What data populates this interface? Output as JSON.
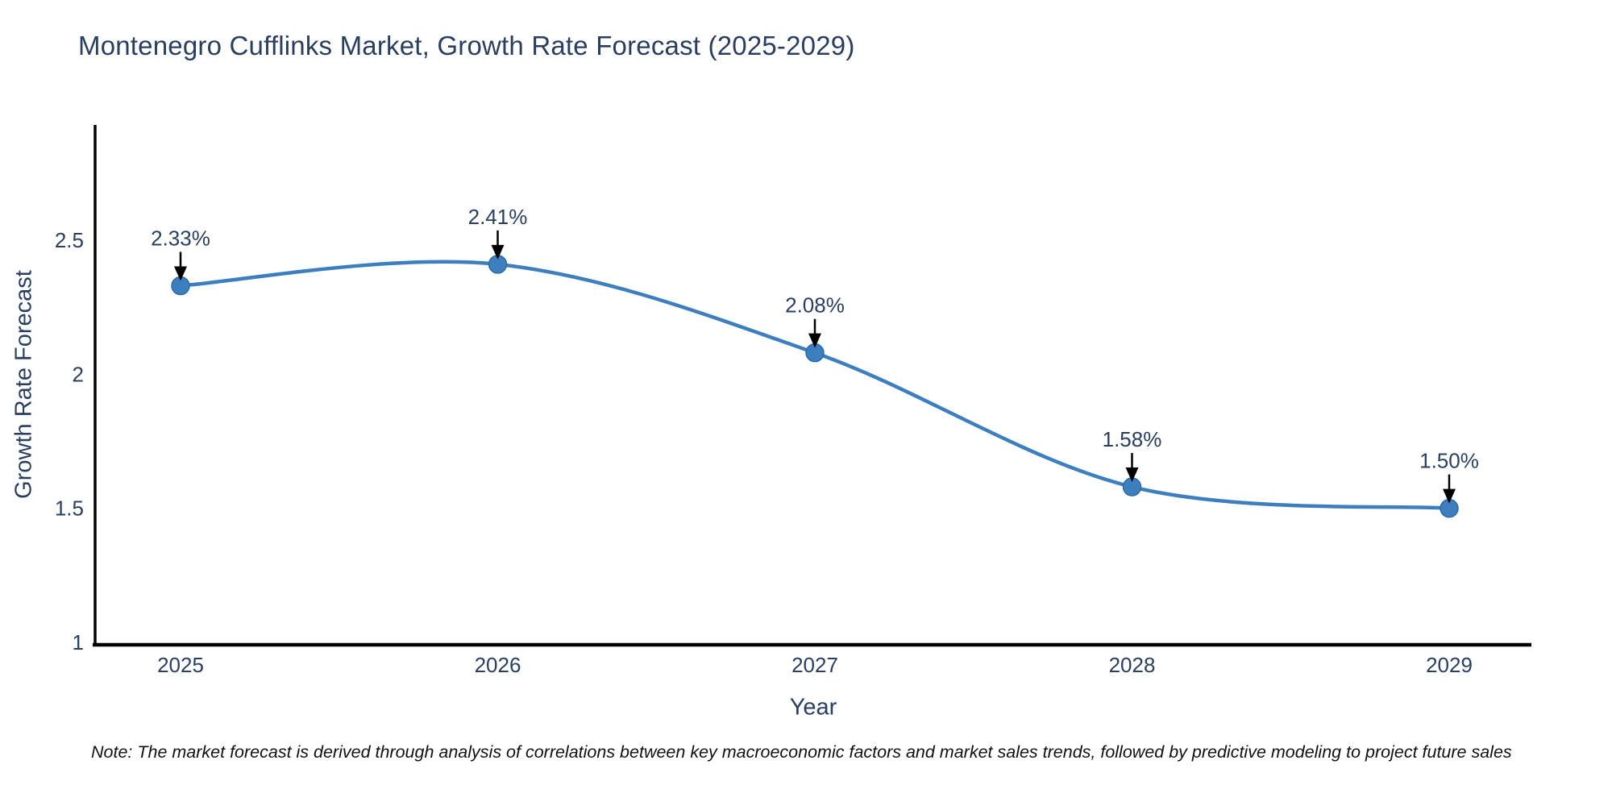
{
  "note": "Note: The market forecast is derived through analysis of correlations between key macroeconomic factors and market sales trends, followed by predictive modeling to project future sales",
  "chart_data": {
    "type": "line",
    "title": "Montenegro Cufflinks Market, Growth Rate Forecast (2025-2029)",
    "xlabel": "Year",
    "ylabel": "Growth Rate Forecast",
    "x": [
      2025,
      2026,
      2027,
      2028,
      2029
    ],
    "series": [
      {
        "name": "Growth Rate Forecast",
        "values": [
          2.33,
          2.41,
          2.08,
          1.58,
          1.5
        ]
      }
    ],
    "point_labels": [
      "2.33%",
      "2.41%",
      "2.08%",
      "1.58%",
      "1.50%"
    ],
    "yticks": [
      1,
      1.5,
      2,
      2.5
    ],
    "xticks": [
      "2025",
      "2026",
      "2027",
      "2028",
      "2029"
    ],
    "ylim": [
      1,
      2.93
    ],
    "line_shape": "spline",
    "grid": false,
    "legend_position": "none",
    "colors": {
      "line": "#3d7ebf",
      "marker": "#3d7ebf",
      "marker_edge": "#2f6ba6",
      "axis_line": "#000000",
      "tick_label": "#2a3f5f",
      "annotation_text": "#2a3f5f",
      "annotation_arrow": "#000000",
      "title": "#2a3f5f"
    }
  }
}
